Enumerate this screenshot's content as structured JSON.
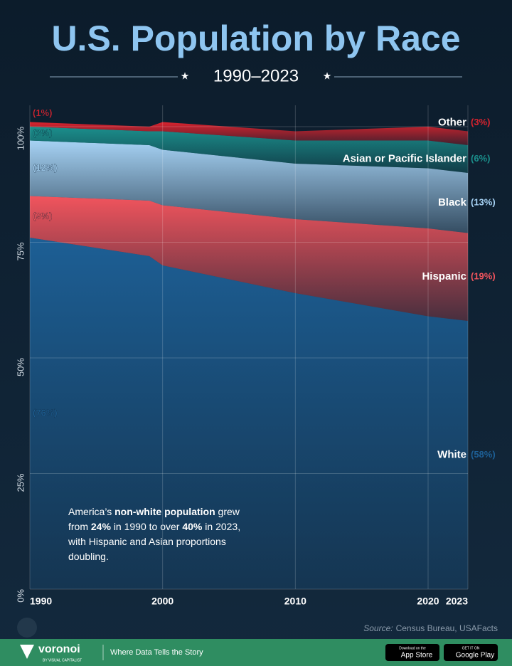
{
  "chart_data": {
    "type": "stacked_area",
    "title": "U.S. Population by Race",
    "subtitle": "1990–2023",
    "x": [
      1990,
      1999,
      2000,
      2010,
      2020,
      2023
    ],
    "xlim": [
      1990,
      2023
    ],
    "xticks": [
      1990,
      2000,
      2010,
      2020,
      2023
    ],
    "ylim": [
      0,
      100
    ],
    "yticks": [
      {
        "value": 0,
        "label": "0%"
      },
      {
        "value": 25,
        "label": "25%"
      },
      {
        "value": 50,
        "label": "50%"
      },
      {
        "value": 75,
        "label": "75%"
      },
      {
        "value": 100,
        "label": "100%"
      }
    ],
    "grid": true,
    "series": [
      {
        "name": "White",
        "color": "#1d5f95",
        "values": [
          76,
          72,
          70,
          64,
          59,
          58
        ],
        "value_labels": [
          "(76%)",
          null,
          null,
          null,
          null,
          "(58%)"
        ]
      },
      {
        "name": "Hispanic",
        "color": "#f1545d",
        "values": [
          9,
          12,
          13,
          16,
          19,
          19
        ],
        "value_labels": [
          "(9%)",
          null,
          null,
          null,
          null,
          "(19%)"
        ]
      },
      {
        "name": "Black",
        "color": "#a6d2f4",
        "values": [
          12,
          12,
          12,
          12,
          13,
          13
        ],
        "value_labels": [
          "(12%)",
          null,
          null,
          null,
          null,
          "(13%)"
        ]
      },
      {
        "name": "Asian or Pacific Islander",
        "color": "#1b8f8c",
        "values": [
          3,
          3,
          4,
          5,
          6,
          6
        ],
        "value_labels": [
          "(3%)",
          null,
          null,
          null,
          null,
          "(6%)"
        ]
      },
      {
        "name": "Other",
        "color": "#d9232e",
        "values": [
          1,
          1,
          2,
          2,
          3,
          3
        ],
        "value_labels": [
          "(1%)",
          null,
          null,
          null,
          null,
          "(3%)"
        ]
      }
    ],
    "annotation": [
      {
        "text": "America’s ",
        "bold": false
      },
      {
        "text": "non-white population",
        "bold": true
      },
      {
        "text": " grew from ",
        "bold": false
      },
      {
        "text": "24%",
        "bold": true
      },
      {
        "text": " in 1990 to over ",
        "bold": false
      },
      {
        "text": "40%",
        "bold": true
      },
      {
        "text": " in 2023, with Hispanic and Asian proportions doubling.",
        "bold": false
      }
    ],
    "source_label": "Source:",
    "source": "Census Bureau, USAFacts"
  },
  "footer": {
    "brand": "voronoi",
    "brand_sub": "BY VISUAL CAPITALIST",
    "tagline": "Where Data Tells the Story",
    "app_store_small": "Download on the",
    "app_store": "App Store",
    "google_small": "GET IT ON",
    "google": "Google Play"
  }
}
